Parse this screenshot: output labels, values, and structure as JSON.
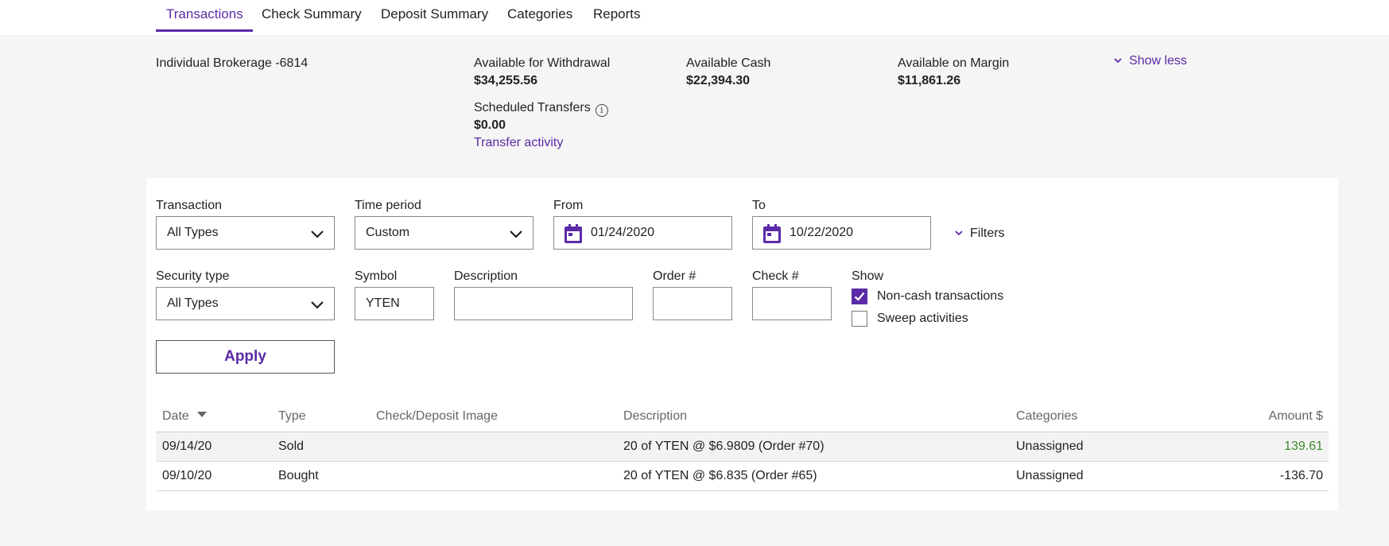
{
  "tabs": [
    {
      "label": "Transactions",
      "active": true
    },
    {
      "label": "Check Summary"
    },
    {
      "label": "Deposit Summary"
    },
    {
      "label": "Categories"
    },
    {
      "label": "Reports"
    }
  ],
  "account": {
    "name": "Individual Brokerage -6814",
    "available_withdrawal_label": "Available for Withdrawal",
    "available_withdrawal": "$34,255.56",
    "available_cash_label": "Available Cash",
    "available_cash": "$22,394.30",
    "available_margin_label": "Available on Margin",
    "available_margin": "$11,861.26",
    "scheduled_label": "Scheduled Transfers",
    "scheduled_value": "$0.00",
    "transfer_link": "Transfer activity",
    "show_less": "Show less"
  },
  "filters": {
    "transaction_label": "Transaction",
    "transaction_value": "All Types",
    "time_period_label": "Time period",
    "time_period_value": "Custom",
    "from_label": "From",
    "from_value": "01/24/2020",
    "to_label": "To",
    "to_value": "10/22/2020",
    "filters_link": "Filters",
    "security_label": "Security type",
    "security_value": "All Types",
    "symbol_label": "Symbol",
    "symbol_value": "YTEN",
    "description_label": "Description",
    "description_value": "",
    "order_label": "Order #",
    "order_value": "",
    "check_label": "Check #",
    "check_value": "",
    "show_label": "Show",
    "noncash_label": "Non-cash transactions",
    "noncash_checked": true,
    "sweep_label": "Sweep activities",
    "sweep_checked": false,
    "apply_label": "Apply"
  },
  "table": {
    "headers": {
      "date": "Date",
      "type": "Type",
      "image": "Check/Deposit Image",
      "description": "Description",
      "categories": "Categories",
      "amount": "Amount $"
    },
    "rows": [
      {
        "date": "09/14/20",
        "type": "Sold",
        "description": "20 of YTEN @ $6.9809 (Order #70)",
        "category": "Unassigned",
        "amount": "139.61"
      },
      {
        "date": "09/10/20",
        "type": "Bought",
        "description": "20 of YTEN @ $6.835 (Order #65)",
        "category": "Unassigned",
        "amount": "-136.70"
      }
    ]
  },
  "colors": {
    "accent": "#5b2aa6",
    "positive": "#3c8a2e"
  }
}
